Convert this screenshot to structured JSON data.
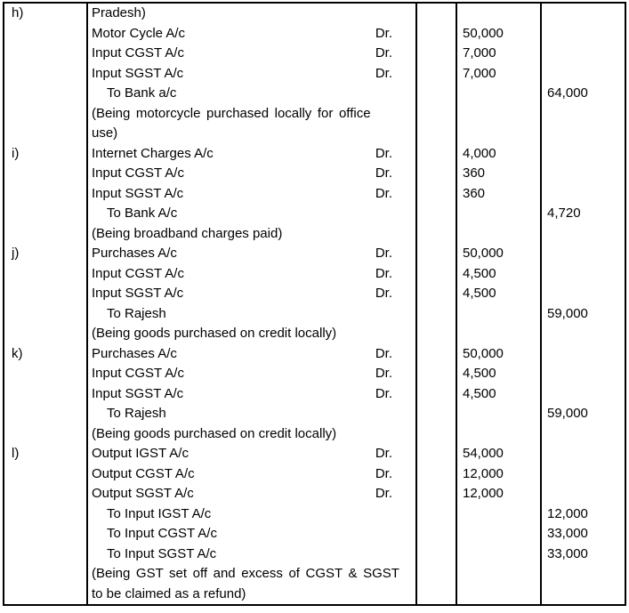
{
  "colors": {
    "background": "#ffffff",
    "text": "#000000",
    "border": "#000000"
  },
  "table": {
    "description": "journal-entries-table",
    "dr_marker": "Dr.",
    "columns": [
      {
        "id": "entry-letter"
      },
      {
        "id": "particulars"
      },
      {
        "id": "ledger-folio"
      },
      {
        "id": "debit-amount"
      },
      {
        "id": "credit-amount"
      }
    ],
    "rows": [
      {
        "label": "h)",
        "text": "Pradesh)"
      },
      {
        "text": "Motor Cycle A/c",
        "dr": "Dr.",
        "debit": "50,000"
      },
      {
        "text": "Input CGST A/c",
        "dr": "Dr.",
        "debit": "7,000"
      },
      {
        "text": "Input SGST A/c",
        "dr": "Dr.",
        "debit": "7,000"
      },
      {
        "text": "To Bank a/c",
        "indent": true,
        "credit": "64,000"
      },
      {
        "text": "(Being motorcycle purchased locally for office",
        "justify": true
      },
      {
        "text": "use)"
      },
      {
        "label": "i)",
        "text": "Internet Charges A/c",
        "dr": "Dr.",
        "debit": "4,000"
      },
      {
        "text": "Input CGST A/c",
        "dr": "Dr.",
        "debit": "360"
      },
      {
        "text": "Input SGST A/c",
        "dr": "Dr.",
        "debit": "360"
      },
      {
        "text": "To Bank A/c",
        "indent": true,
        "credit": "4,720"
      },
      {
        "text": "(Being broadband charges paid)"
      },
      {
        "label": "j)",
        "text": "Purchases A/c",
        "dr": "Dr.",
        "debit": "50,000"
      },
      {
        "text": "Input CGST A/c",
        "dr": "Dr.",
        "debit": "4,500"
      },
      {
        "text": "Input SGST A/c",
        "dr": "Dr.",
        "debit": "4,500"
      },
      {
        "text": "To Rajesh",
        "indent": true,
        "credit": "59,000"
      },
      {
        "text": "(Being goods purchased on credit locally)"
      },
      {
        "label": "k)",
        "text": "Purchases A/c",
        "dr": "Dr.",
        "debit": "50,000"
      },
      {
        "text": "Input CGST A/c",
        "dr": "Dr.",
        "debit": "4,500"
      },
      {
        "text": "Input SGST A/c",
        "dr": "Dr.",
        "debit": "4,500"
      },
      {
        "text": "To Rajesh",
        "indent": true,
        "credit": "59,000"
      },
      {
        "text": "(Being goods purchased on credit locally)"
      },
      {
        "label": "l)",
        "text": "Output IGST A/c",
        "dr": "Dr.",
        "debit": "54,000"
      },
      {
        "text": "Output CGST A/c",
        "dr": "Dr.",
        "debit": "12,000"
      },
      {
        "text": "Output SGST A/c",
        "dr": "Dr.",
        "debit": "12,000"
      },
      {
        "text": "To Input IGST A/c",
        "indent": true,
        "credit": "12,000"
      },
      {
        "text": "To Input CGST A/c",
        "indent": true,
        "credit": "33,000"
      },
      {
        "text": "To Input SGST A/c",
        "indent": true,
        "credit": "33,000"
      },
      {
        "text": "(Being GST set off and excess of CGST & SGST",
        "justify": true
      },
      {
        "text": "to be claimed as a refund)"
      }
    ]
  }
}
